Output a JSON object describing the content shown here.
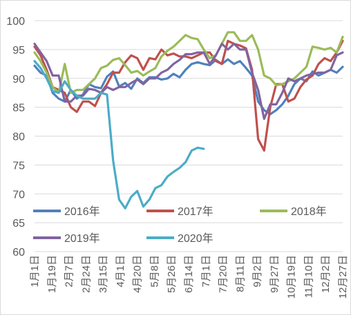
{
  "chart_data": {
    "type": "line",
    "ylim": [
      60,
      100
    ],
    "yticks": [
      60,
      65,
      70,
      75,
      80,
      85,
      90,
      95,
      100
    ],
    "x_tick_labels": [
      "1月1日",
      "1月19日",
      "2月7日",
      "2月24日",
      "3月15日",
      "4月1日",
      "4月20日",
      "5月8日",
      "5月26日",
      "6月14日",
      "7月1日",
      "7月20日",
      "8月11日",
      "9月2日",
      "9月27日",
      "10月19日",
      "11月10日",
      "12月2日",
      "12月27日"
    ],
    "grid": "horizontal",
    "legend_position": "bottom-left, inside plot",
    "series": [
      {
        "name": "2016年",
        "color": "#4F81BD",
        "values": [
          92.2,
          91,
          90.5,
          87.5,
          86.5,
          86,
          88,
          86.5,
          87.2,
          89,
          88.5,
          88.3,
          90.3,
          91.2,
          88.6,
          89.2,
          88.2,
          90,
          89.2,
          90.2,
          90.2,
          89.8,
          90,
          90.8,
          90.2,
          91.5,
          92.5,
          92.8,
          92.5,
          92.3,
          93.2,
          92.5,
          93.3,
          92.5,
          93,
          91.8,
          90.5,
          86,
          84.5,
          83.8,
          84.5,
          85.5,
          87,
          89,
          90,
          89.5,
          91.2,
          90.5,
          91,
          91.5,
          91,
          92
        ]
      },
      {
        "name": "2017年",
        "color": "#C0504D",
        "values": [
          95.5,
          94,
          91.5,
          88.5,
          88,
          87.5,
          85,
          84.2,
          86,
          86,
          85.2,
          87.5,
          89,
          91,
          91,
          92.8,
          94,
          93.5,
          91.5,
          93.5,
          93.3,
          95,
          94,
          94.3,
          93.8,
          93.8,
          93.5,
          94,
          94.5,
          94.5,
          93,
          92.5,
          96.5,
          96,
          95.7,
          95.2,
          91.5,
          79.5,
          77.5,
          85,
          89,
          89,
          86,
          86.5,
          88.5,
          89.8,
          90.5,
          92.5,
          93.5,
          93,
          94.5,
          96.5
        ]
      },
      {
        "name": "2018年",
        "color": "#9BBB59",
        "values": [
          94.5,
          93,
          91,
          88.5,
          87.5,
          92.5,
          87.5,
          88,
          88,
          89,
          90,
          91.8,
          92.2,
          93.2,
          93.5,
          92.3,
          91,
          91.3,
          90.5,
          91.2,
          91.8,
          93.8,
          94.8,
          95.5,
          96.5,
          97.5,
          97,
          96.8,
          95,
          93.5,
          94,
          96,
          98,
          98,
          96.5,
          96.5,
          97.5,
          95,
          90.5,
          90,
          88.8,
          89,
          89.5,
          90,
          91,
          92,
          95.5,
          95.3,
          95,
          95.3,
          94.5,
          97.2
        ]
      },
      {
        "name": "2019年",
        "color": "#8064A2",
        "values": [
          96,
          94.5,
          93,
          90.5,
          90.5,
          86,
          86,
          87,
          87,
          88.2,
          88,
          87.5,
          88.5,
          88,
          88.5,
          88.5,
          89.2,
          89.8,
          89,
          90,
          90,
          91,
          91.5,
          92.5,
          93.2,
          94.2,
          94.2,
          94.5,
          94.5,
          92.5,
          94,
          96,
          95,
          96,
          95,
          95,
          91,
          88,
          83,
          85.5,
          85.5,
          87.5,
          90,
          89.5,
          90,
          90.5,
          90.8,
          91,
          91,
          91.5,
          94,
          94.5
        ]
      },
      {
        "name": "2020年",
        "color": "#4BACC6",
        "values": [
          93,
          91.8,
          90,
          87.8,
          87.5,
          89.5,
          88,
          87,
          86.5,
          86.5,
          86.5,
          87.5,
          87.2,
          75.8,
          69,
          67.5,
          69.5,
          70.5,
          67.8,
          69,
          71,
          71.5,
          73,
          73.8,
          74.5,
          75.5,
          77.5,
          78,
          77.8
        ]
      }
    ]
  }
}
